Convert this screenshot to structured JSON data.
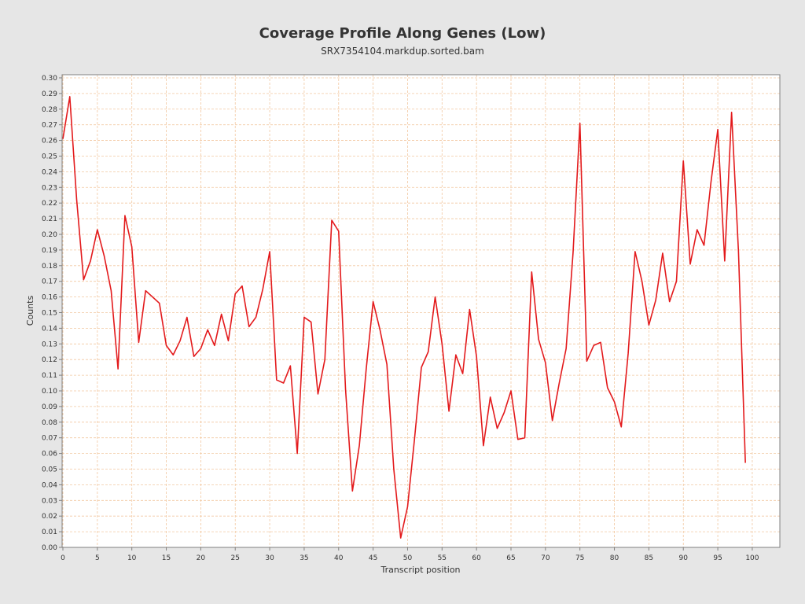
{
  "chart_data": {
    "type": "line",
    "title": "Coverage Profile Along Genes (Low)",
    "subtitle": "SRX7354104.markdup.sorted.bam",
    "xlabel": "Transcript position",
    "ylabel": "Counts",
    "xlim": [
      0,
      104
    ],
    "ylim": [
      0,
      0.302
    ],
    "x_ticks": [
      0,
      5,
      10,
      15,
      20,
      25,
      30,
      35,
      40,
      45,
      50,
      55,
      60,
      65,
      70,
      75,
      80,
      85,
      90,
      95,
      100
    ],
    "y_ticks": [
      0.0,
      0.01,
      0.02,
      0.03,
      0.04,
      0.05,
      0.06,
      0.07,
      0.08,
      0.09,
      0.1,
      0.11,
      0.12,
      0.13,
      0.14,
      0.15,
      0.16,
      0.17,
      0.18,
      0.19,
      0.2,
      0.21,
      0.22,
      0.23,
      0.24,
      0.25,
      0.26,
      0.27,
      0.28,
      0.29,
      0.3
    ],
    "grid": true,
    "legend": "none",
    "colors": {
      "line": "#e31a1c",
      "grid": "#f2c8a0",
      "plot_bg": "#ffffff",
      "page_bg": "#e6e6e6"
    },
    "series": [
      {
        "x": [
          0,
          1,
          2,
          3,
          4,
          5,
          6,
          7,
          8,
          9,
          10,
          11,
          12,
          13,
          14,
          15,
          16,
          17,
          18,
          19,
          20,
          21,
          22,
          23,
          24,
          25,
          26,
          27,
          28,
          29,
          30,
          31,
          32,
          33,
          34,
          35,
          36,
          37,
          38,
          39,
          40,
          41,
          42,
          43,
          44,
          45,
          46,
          47,
          48,
          49,
          50,
          51,
          52,
          53,
          54,
          55,
          56,
          57,
          58,
          59,
          60,
          61,
          62,
          63,
          64,
          65,
          66,
          67,
          68,
          69,
          70,
          71,
          72,
          73,
          74,
          75,
          76,
          77,
          78,
          79,
          80,
          81,
          82,
          83,
          84,
          85,
          86,
          87,
          88,
          89,
          90,
          91,
          92,
          93,
          94,
          95,
          96,
          97,
          98,
          99
        ],
        "values": [
          0.261,
          0.288,
          0.222,
          0.171,
          0.183,
          0.203,
          0.186,
          0.164,
          0.114,
          0.212,
          0.192,
          0.131,
          0.164,
          0.16,
          0.156,
          0.129,
          0.123,
          0.132,
          0.147,
          0.122,
          0.127,
          0.139,
          0.129,
          0.149,
          0.132,
          0.162,
          0.167,
          0.141,
          0.147,
          0.165,
          0.189,
          0.107,
          0.105,
          0.116,
          0.06,
          0.147,
          0.144,
          0.098,
          0.12,
          0.209,
          0.202,
          0.101,
          0.036,
          0.065,
          0.114,
          0.157,
          0.139,
          0.117,
          0.05,
          0.006,
          0.026,
          0.069,
          0.115,
          0.125,
          0.16,
          0.13,
          0.087,
          0.123,
          0.111,
          0.152,
          0.122,
          0.065,
          0.096,
          0.076,
          0.086,
          0.1,
          0.069,
          0.07,
          0.176,
          0.133,
          0.118,
          0.081,
          0.105,
          0.127,
          0.188,
          0.271,
          0.119,
          0.129,
          0.131,
          0.102,
          0.093,
          0.077,
          0.124,
          0.189,
          0.17,
          0.142,
          0.158,
          0.188,
          0.157,
          0.17,
          0.247,
          0.181,
          0.203,
          0.193,
          0.233,
          0.267,
          0.183,
          0.278,
          0.189,
          0.054
        ]
      }
    ]
  }
}
